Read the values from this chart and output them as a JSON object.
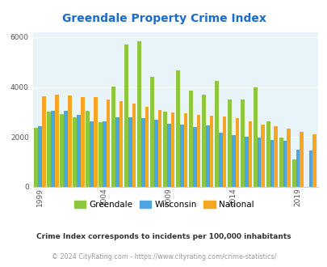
{
  "title": "Greendale Property Crime Index",
  "subtitle": "Crime Index corresponds to incidents per 100,000 inhabitants",
  "footer": "© 2024 CityRating.com - https://www.cityrating.com/crime-statistics/",
  "years": [
    1999,
    2000,
    2001,
    2002,
    2003,
    2004,
    2005,
    2006,
    2007,
    2008,
    2009,
    2010,
    2011,
    2012,
    2013,
    2014,
    2015,
    2016,
    2017,
    2018,
    2019,
    2020
  ],
  "greendale": [
    2370,
    3000,
    2900,
    2800,
    3050,
    2600,
    4020,
    5700,
    5820,
    4400,
    3020,
    4650,
    3850,
    3680,
    4230,
    3490,
    3500,
    3970,
    2620,
    1960,
    1100,
    0
  ],
  "wisconsin": [
    2420,
    3050,
    3060,
    2880,
    2630,
    2620,
    2780,
    2780,
    2750,
    2680,
    2540,
    2480,
    2400,
    2450,
    2180,
    2080,
    2020,
    1990,
    1870,
    1840,
    1500,
    1460
  ],
  "national": [
    3630,
    3680,
    3660,
    3580,
    3580,
    3490,
    3420,
    3340,
    3220,
    3080,
    2990,
    2950,
    2890,
    2850,
    2810,
    2760,
    2610,
    2500,
    2440,
    2340,
    2200,
    2100
  ],
  "greendale_color": "#8dc63f",
  "wisconsin_color": "#4da6e0",
  "national_color": "#f5a623",
  "bg_color": "#e8f4f8",
  "title_color": "#1a6bcc",
  "subtitle_color": "#333333",
  "footer_color": "#999999",
  "ylim": [
    0,
    6200
  ],
  "yticks": [
    0,
    2000,
    4000,
    6000
  ],
  "x_tick_labels": [
    "1999",
    "2004",
    "2009",
    "2014",
    "2019"
  ],
  "x_tick_positions": [
    0,
    5,
    10,
    15,
    20
  ]
}
